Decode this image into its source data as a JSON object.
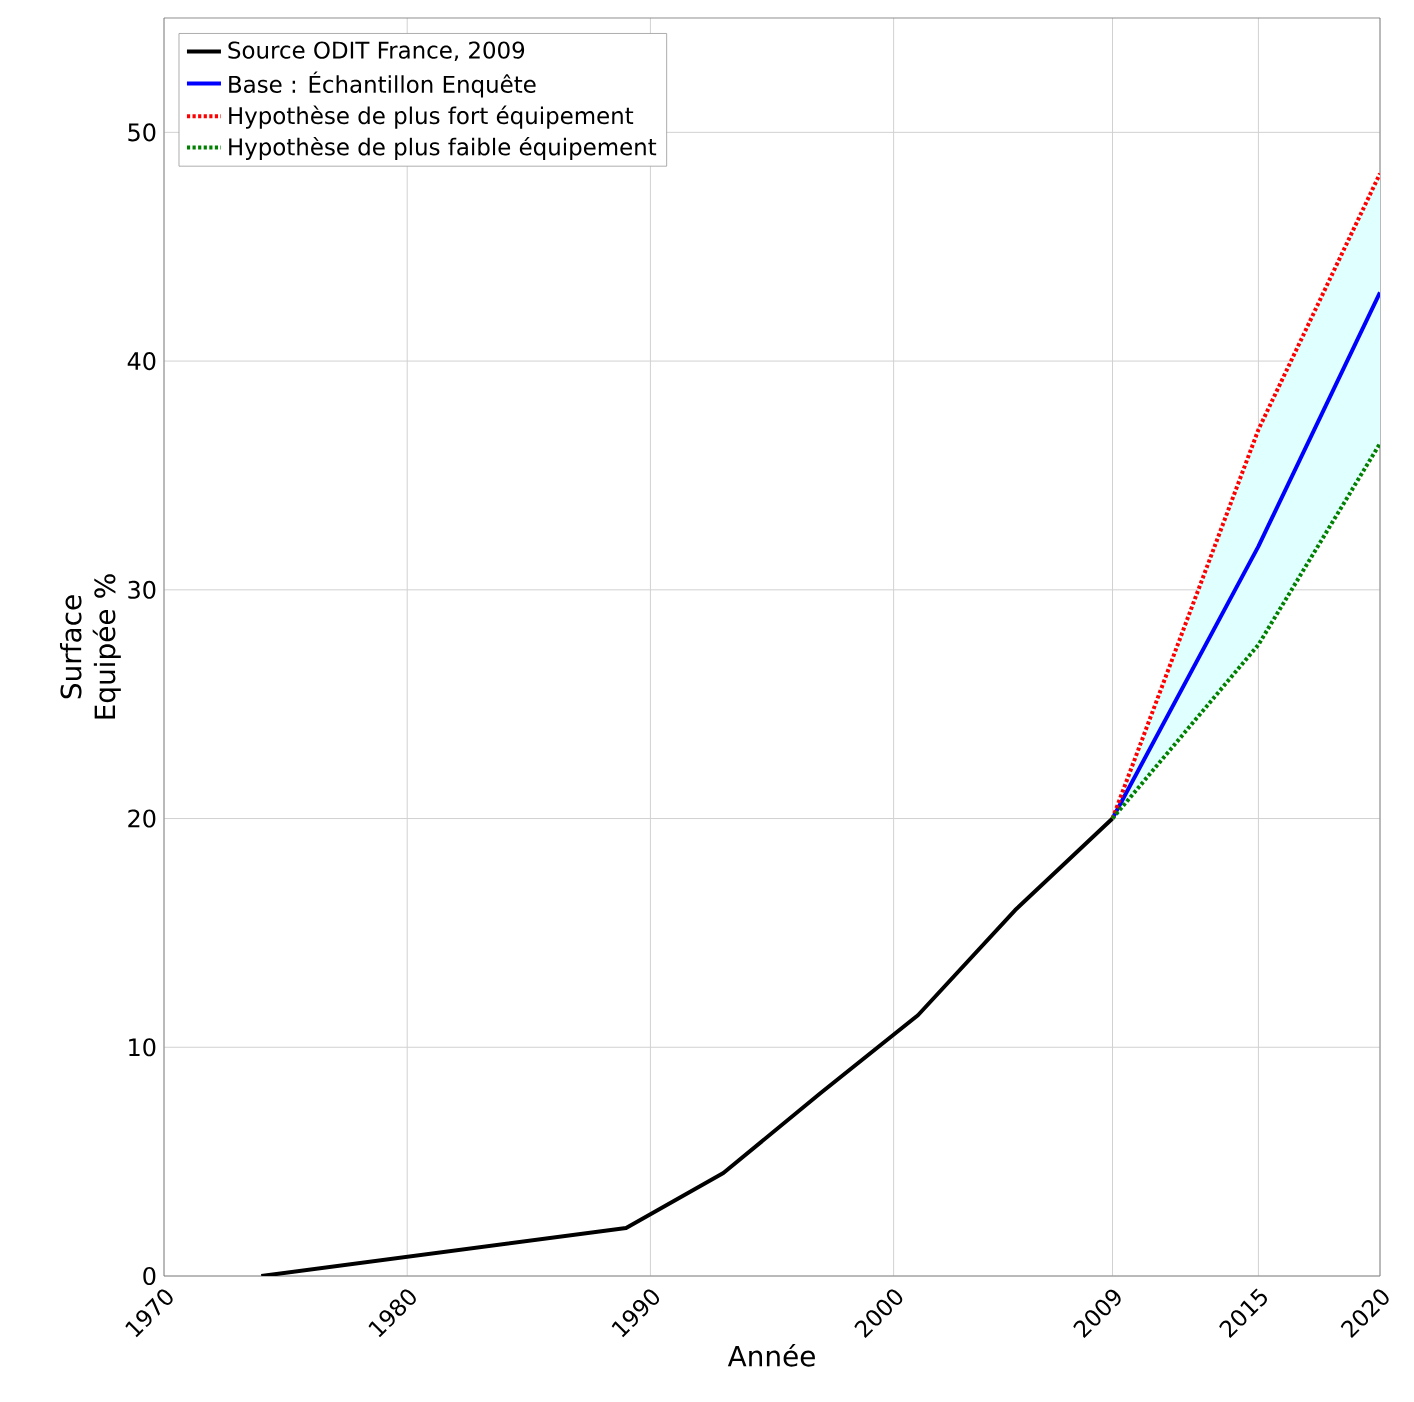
{
  "chart_data": {
    "type": "line",
    "xlabel": "Année",
    "ylabel": "Surface Equipée %",
    "xlim": [
      1970,
      2020
    ],
    "ylim": [
      0,
      55
    ],
    "xticks": [
      1970,
      1980,
      1990,
      2000,
      2009,
      2015,
      2020
    ],
    "yticks": [
      0,
      10,
      20,
      30,
      40,
      50
    ],
    "grid": true,
    "legend": "top left",
    "series": [
      {
        "name": "Source ODIT France, 2009",
        "color": "#000000",
        "x": [
          1974,
          1989,
          1993,
          1997,
          2001,
          2005,
          2009
        ],
        "values": [
          0,
          2.1,
          4.5,
          8,
          11.4,
          16,
          20
        ]
      },
      {
        "name": "Base : Échantillon Enquête",
        "color": "#0000ff",
        "x": [
          2009,
          2015,
          2020
        ],
        "values": [
          20,
          31.9,
          43
        ],
        "lower": [
          20,
          27.6,
          36.4
        ],
        "upper": [
          20,
          37,
          48.2
        ]
      },
      {
        "name": "Hypothèse de plus fort équipement",
        "color": "#ff0000",
        "line_style": "dotted",
        "x": [
          2009,
          2015,
          2020
        ],
        "values": [
          20,
          37,
          48.2
        ]
      },
      {
        "name": "Hypothèse de plus faible équipement",
        "color": "#008000",
        "line_style": "dotted",
        "x": [
          2009,
          2015,
          2020
        ],
        "values": [
          20,
          27.6,
          36.4
        ]
      }
    ]
  }
}
